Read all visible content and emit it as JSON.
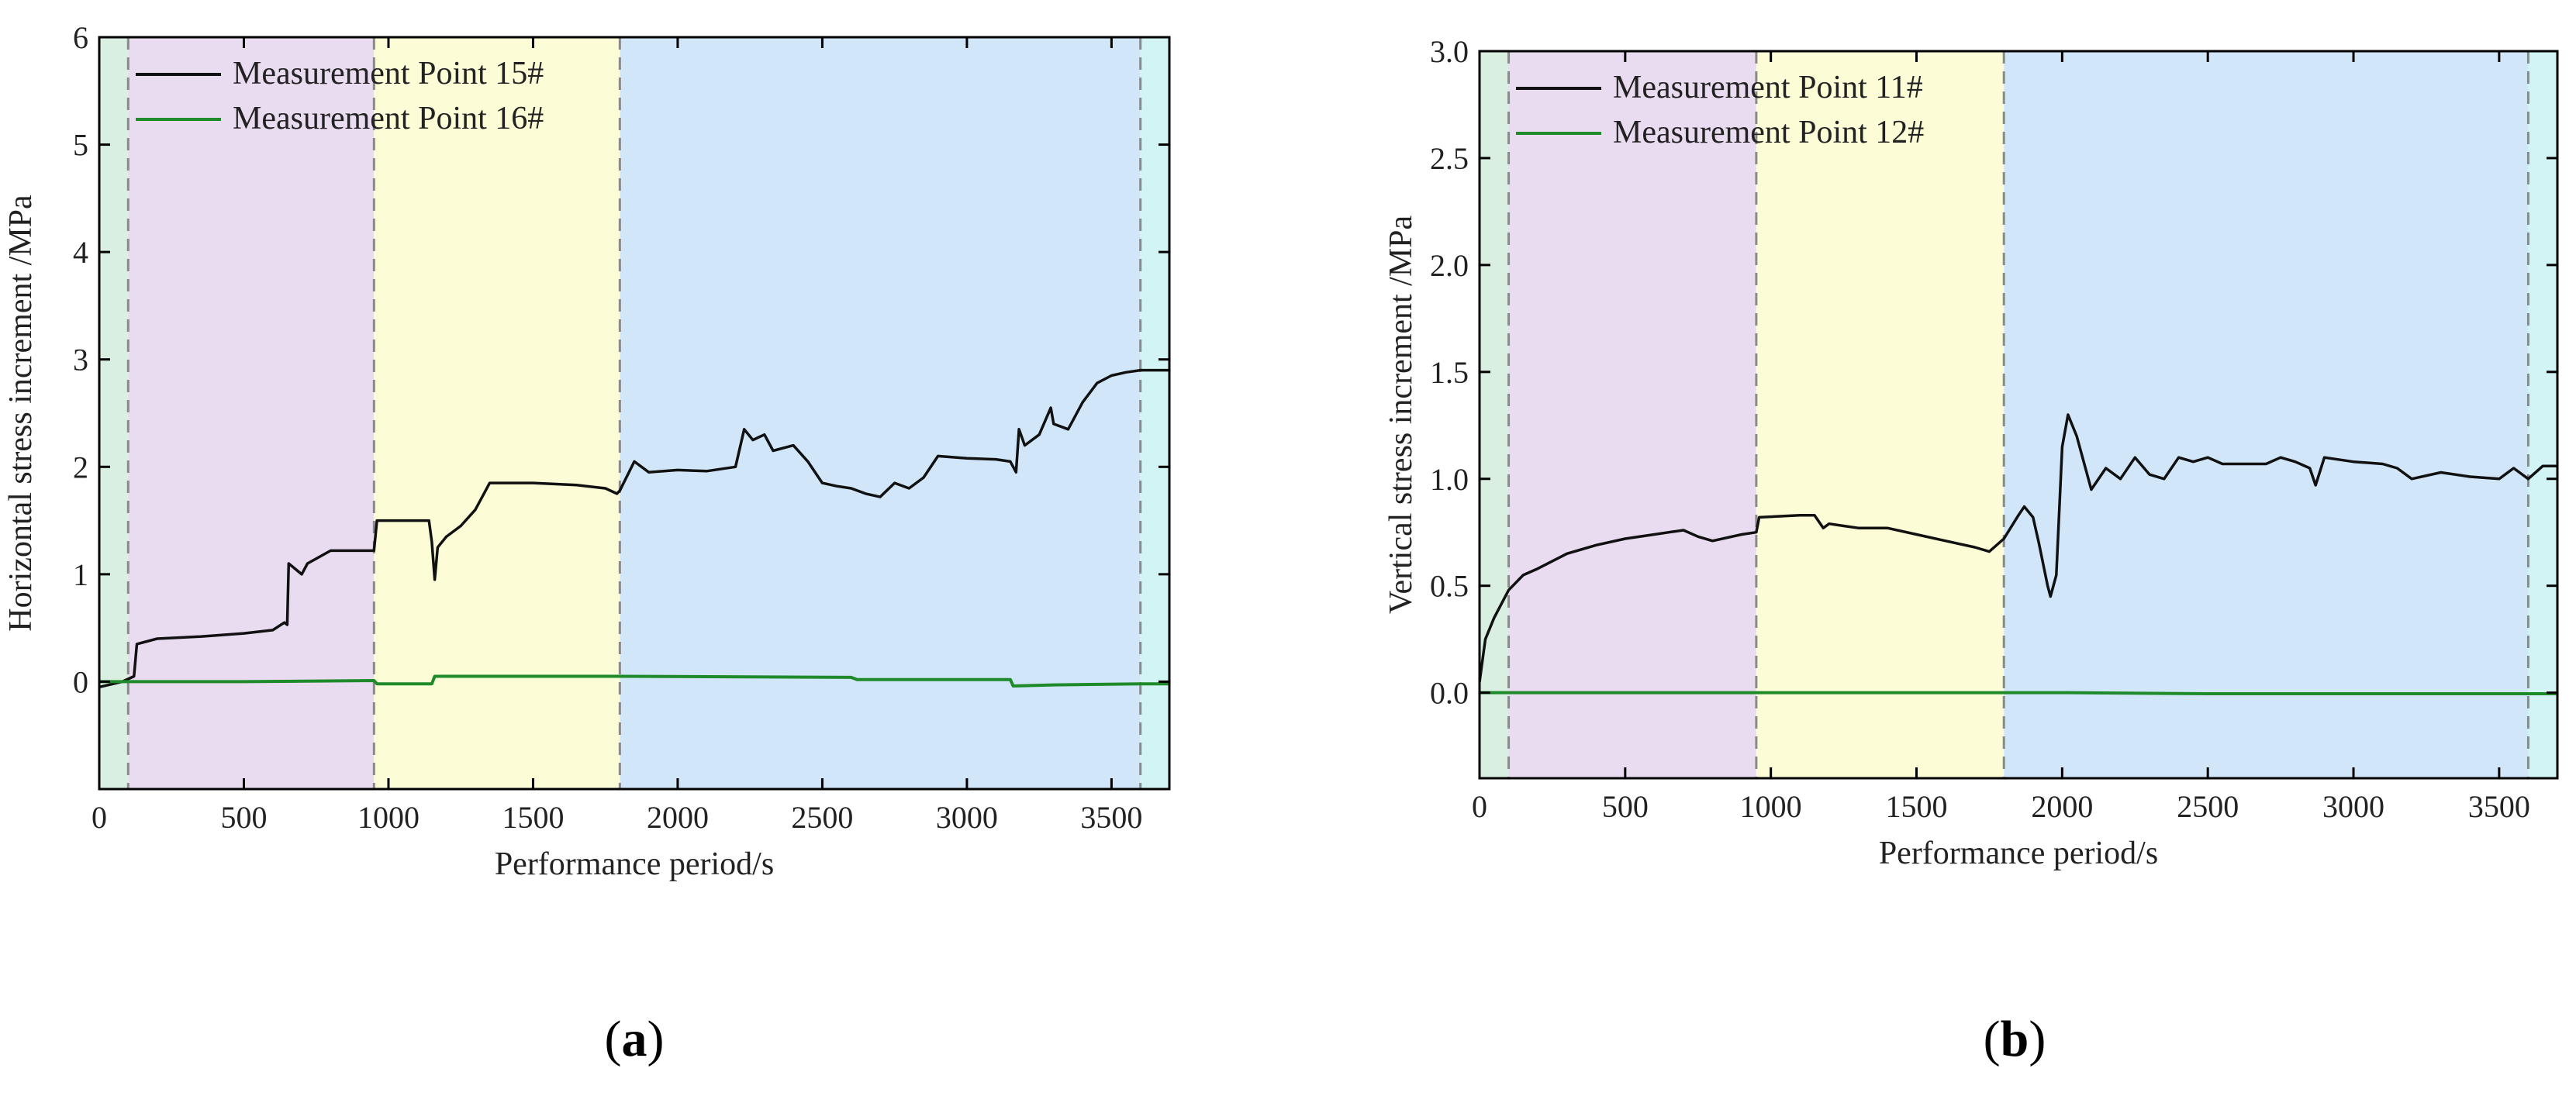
{
  "figure": {
    "panel_a_tag": "a",
    "panel_b_tag": "b",
    "paren_open": "(",
    "paren_close": ")"
  },
  "colors": {
    "phase_1": "#d8efe1",
    "phase_2": "#e9dbf0",
    "phase_3": "#fcfcd7",
    "phase_4": "#d2e6fa",
    "phase_5": "#d2f4f4",
    "series_black": "#111111",
    "series_green": "#1e8a2a",
    "divider": "#8a8a8a"
  },
  "chart_data": [
    {
      "type": "line",
      "panel": "a",
      "title": "",
      "xlabel": "Performance period/s",
      "ylabel": "Horizontal stress increment /MPa",
      "xlim": [
        0,
        3700
      ],
      "ylim": [
        -1,
        6
      ],
      "x_ticks": [
        0,
        500,
        1000,
        1500,
        2000,
        2500,
        3000,
        3500
      ],
      "y_ticks": [
        0,
        1,
        2,
        3,
        4,
        5,
        6
      ],
      "legend_position": "top-left",
      "phase_boundaries": [
        100,
        950,
        1800,
        3600
      ],
      "series": [
        {
          "name": "Measurement Point 15#",
          "color": "black",
          "x": [
            0,
            80,
            120,
            130,
            200,
            350,
            500,
            600,
            640,
            650,
            655,
            700,
            720,
            800,
            950,
            960,
            1140,
            1150,
            1160,
            1170,
            1200,
            1250,
            1300,
            1350,
            1500,
            1650,
            1750,
            1790,
            1800,
            1850,
            1900,
            2000,
            2100,
            2200,
            2230,
            2260,
            2300,
            2330,
            2400,
            2450,
            2500,
            2550,
            2600,
            2650,
            2700,
            2750,
            2800,
            2850,
            2900,
            3000,
            3100,
            3150,
            3170,
            3180,
            3200,
            3250,
            3290,
            3300,
            3350,
            3400,
            3450,
            3500,
            3550,
            3600,
            3700
          ],
          "values": [
            -0.05,
            0.0,
            0.05,
            0.35,
            0.4,
            0.42,
            0.45,
            0.48,
            0.55,
            0.53,
            1.1,
            1.0,
            1.1,
            1.22,
            1.22,
            1.5,
            1.5,
            1.3,
            0.95,
            1.25,
            1.35,
            1.45,
            1.6,
            1.85,
            1.85,
            1.83,
            1.8,
            1.75,
            1.78,
            2.05,
            1.95,
            1.97,
            1.96,
            2.0,
            2.35,
            2.25,
            2.3,
            2.15,
            2.2,
            2.05,
            1.85,
            1.82,
            1.8,
            1.75,
            1.72,
            1.85,
            1.8,
            1.9,
            2.1,
            2.08,
            2.07,
            2.05,
            1.95,
            2.35,
            2.2,
            2.3,
            2.55,
            2.4,
            2.35,
            2.6,
            2.78,
            2.85,
            2.88,
            2.9,
            2.9
          ]
        },
        {
          "name": "Measurement Point 16#",
          "color": "green",
          "x": [
            0,
            100,
            500,
            950,
            960,
            1150,
            1160,
            1800,
            2600,
            2620,
            3150,
            3160,
            3300,
            3600,
            3700
          ],
          "values": [
            0.0,
            0.0,
            0.0,
            0.01,
            -0.02,
            -0.02,
            0.05,
            0.05,
            0.04,
            0.02,
            0.02,
            -0.04,
            -0.03,
            -0.02,
            -0.02
          ]
        }
      ]
    },
    {
      "type": "line",
      "panel": "b",
      "title": "",
      "xlabel": "Performance period/s",
      "ylabel": "Vertical stress increment /MPa",
      "xlim": [
        0,
        3700
      ],
      "ylim": [
        -0.4,
        3.0
      ],
      "x_ticks": [
        0,
        500,
        1000,
        1500,
        2000,
        2500,
        3000,
        3500
      ],
      "y_ticks": [
        0.0,
        0.5,
        1.0,
        1.5,
        2.0,
        2.5,
        3.0
      ],
      "y_tick_labels": [
        "0.0",
        "0.5",
        "1.0",
        "1.5",
        "2.0",
        "2.5",
        "3.0"
      ],
      "legend_position": "top-left",
      "phase_boundaries": [
        100,
        950,
        1800,
        3600
      ],
      "series": [
        {
          "name": "Measurement Point 11#",
          "color": "black",
          "x": [
            0,
            20,
            50,
            100,
            150,
            200,
            300,
            400,
            500,
            600,
            650,
            700,
            750,
            800,
            900,
            950,
            960,
            1100,
            1150,
            1180,
            1200,
            1250,
            1300,
            1400,
            1500,
            1600,
            1700,
            1750,
            1800,
            1850,
            1870,
            1900,
            1920,
            1950,
            1960,
            1980,
            2000,
            2020,
            2050,
            2080,
            2100,
            2150,
            2200,
            2250,
            2300,
            2350,
            2400,
            2450,
            2500,
            2550,
            2600,
            2700,
            2750,
            2800,
            2850,
            2870,
            2900,
            3000,
            3100,
            3150,
            3200,
            3300,
            3400,
            3500,
            3550,
            3600,
            3650,
            3700
          ],
          "values": [
            0.05,
            0.25,
            0.35,
            0.48,
            0.55,
            0.58,
            0.65,
            0.69,
            0.72,
            0.74,
            0.75,
            0.76,
            0.73,
            0.71,
            0.74,
            0.75,
            0.82,
            0.83,
            0.83,
            0.77,
            0.79,
            0.78,
            0.77,
            0.77,
            0.74,
            0.71,
            0.68,
            0.66,
            0.72,
            0.83,
            0.87,
            0.82,
            0.7,
            0.5,
            0.45,
            0.55,
            1.15,
            1.3,
            1.2,
            1.05,
            0.95,
            1.05,
            1.0,
            1.1,
            1.02,
            1.0,
            1.1,
            1.08,
            1.1,
            1.07,
            1.07,
            1.07,
            1.1,
            1.08,
            1.05,
            0.97,
            1.1,
            1.08,
            1.07,
            1.05,
            1.0,
            1.03,
            1.01,
            1.0,
            1.05,
            1.0,
            1.06,
            1.06
          ]
        },
        {
          "name": "Measurement Point 12#",
          "color": "green",
          "x": [
            0,
            1000,
            2000,
            2500,
            3000,
            3700
          ],
          "values": [
            0.0,
            0.0,
            0.0,
            -0.005,
            -0.005,
            -0.005
          ]
        }
      ]
    }
  ]
}
